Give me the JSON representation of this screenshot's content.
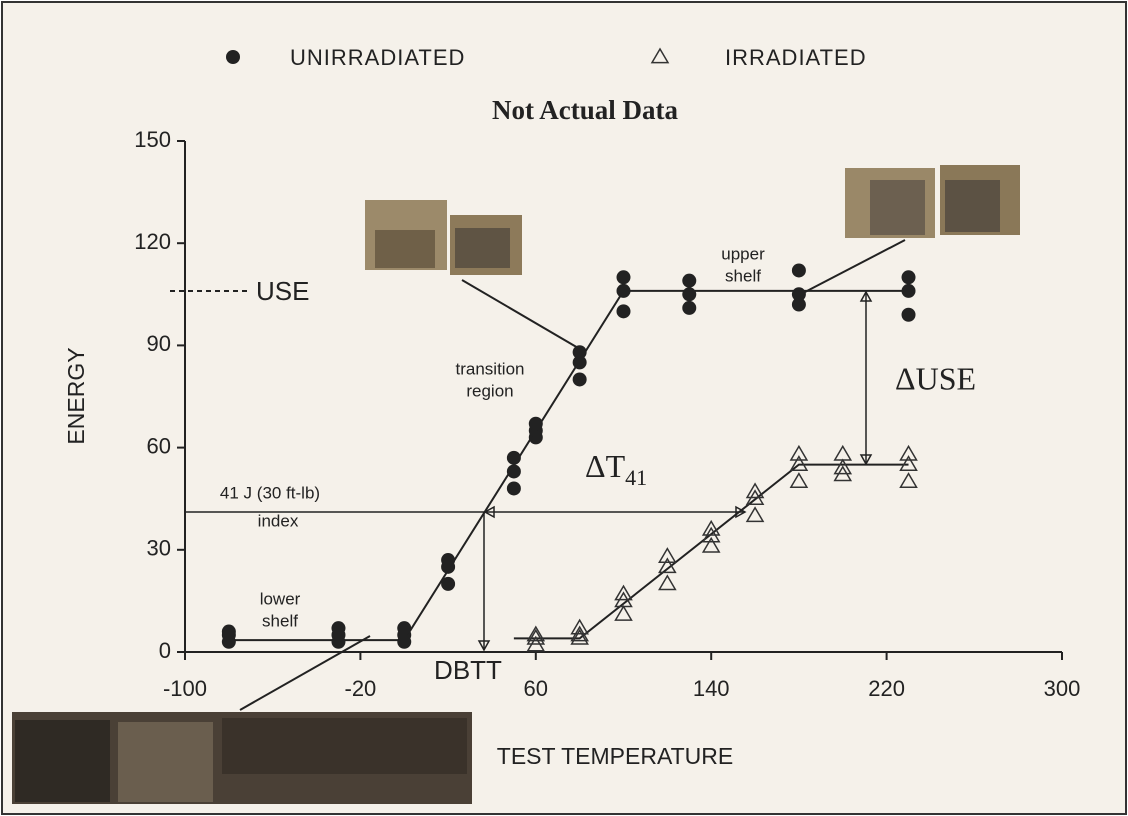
{
  "chart_data": {
    "type": "scatter",
    "title": "Not Actual Data",
    "x_label": "TEST TEMPERATURE",
    "y_label": "ENERGY",
    "xlim": [
      -100,
      300
    ],
    "xticks": [
      -100,
      -20,
      60,
      140,
      220,
      300
    ],
    "ylim": [
      0,
      150
    ],
    "yticks": [
      0,
      30,
      60,
      90,
      120,
      150
    ],
    "series": [
      {
        "name": "UNIRRADIATED",
        "marker": "circle",
        "color": "#222222",
        "x": [
          -80,
          -80,
          -80,
          -30,
          -30,
          -30,
          0,
          0,
          0,
          20,
          20,
          20,
          50,
          50,
          50,
          60,
          60,
          60,
          80,
          80,
          80,
          100,
          100,
          100,
          130,
          130,
          130,
          180,
          180,
          180,
          230,
          230,
          230
        ],
        "values": [
          3,
          5,
          6,
          3,
          5,
          7,
          3,
          5,
          7,
          20,
          25,
          27,
          48,
          53,
          57,
          63,
          65,
          67,
          80,
          85,
          88,
          100,
          106,
          110,
          101,
          105,
          109,
          102,
          105,
          112,
          99,
          106,
          110
        ]
      },
      {
        "name": "IRRADIATED",
        "marker": "triangle",
        "color": "#333333",
        "x": [
          60,
          60,
          60,
          80,
          80,
          80,
          100,
          100,
          100,
          120,
          120,
          120,
          140,
          140,
          140,
          160,
          160,
          160,
          180,
          180,
          180,
          200,
          200,
          200,
          230,
          230,
          230
        ],
        "values": [
          2,
          4,
          5,
          4,
          5,
          7,
          11,
          15,
          17,
          20,
          25,
          28,
          31,
          34,
          36,
          40,
          45,
          47,
          50,
          55,
          58,
          52,
          54,
          58,
          50,
          55,
          58
        ]
      }
    ],
    "fit_lines": [
      {
        "x": [
          -80,
          0,
          100,
          230
        ],
        "values": [
          3.5,
          3.5,
          106,
          106
        ]
      },
      {
        "x": [
          50,
          80,
          180,
          230
        ],
        "values": [
          4,
          4,
          55,
          55
        ]
      }
    ],
    "annotations": {
      "use": "USE",
      "delta_use": "ΔUSE",
      "delta_t": {
        "main": "ΔT",
        "sub": "41"
      },
      "index_line1": "41 J (30 ft-lb)",
      "index_line2": "index",
      "dbtt": "DBTT",
      "upper_shelf": [
        "upper",
        "shelf"
      ],
      "transition": [
        "transition",
        "region"
      ],
      "lower_shelf": [
        "lower",
        "shelf"
      ]
    }
  }
}
